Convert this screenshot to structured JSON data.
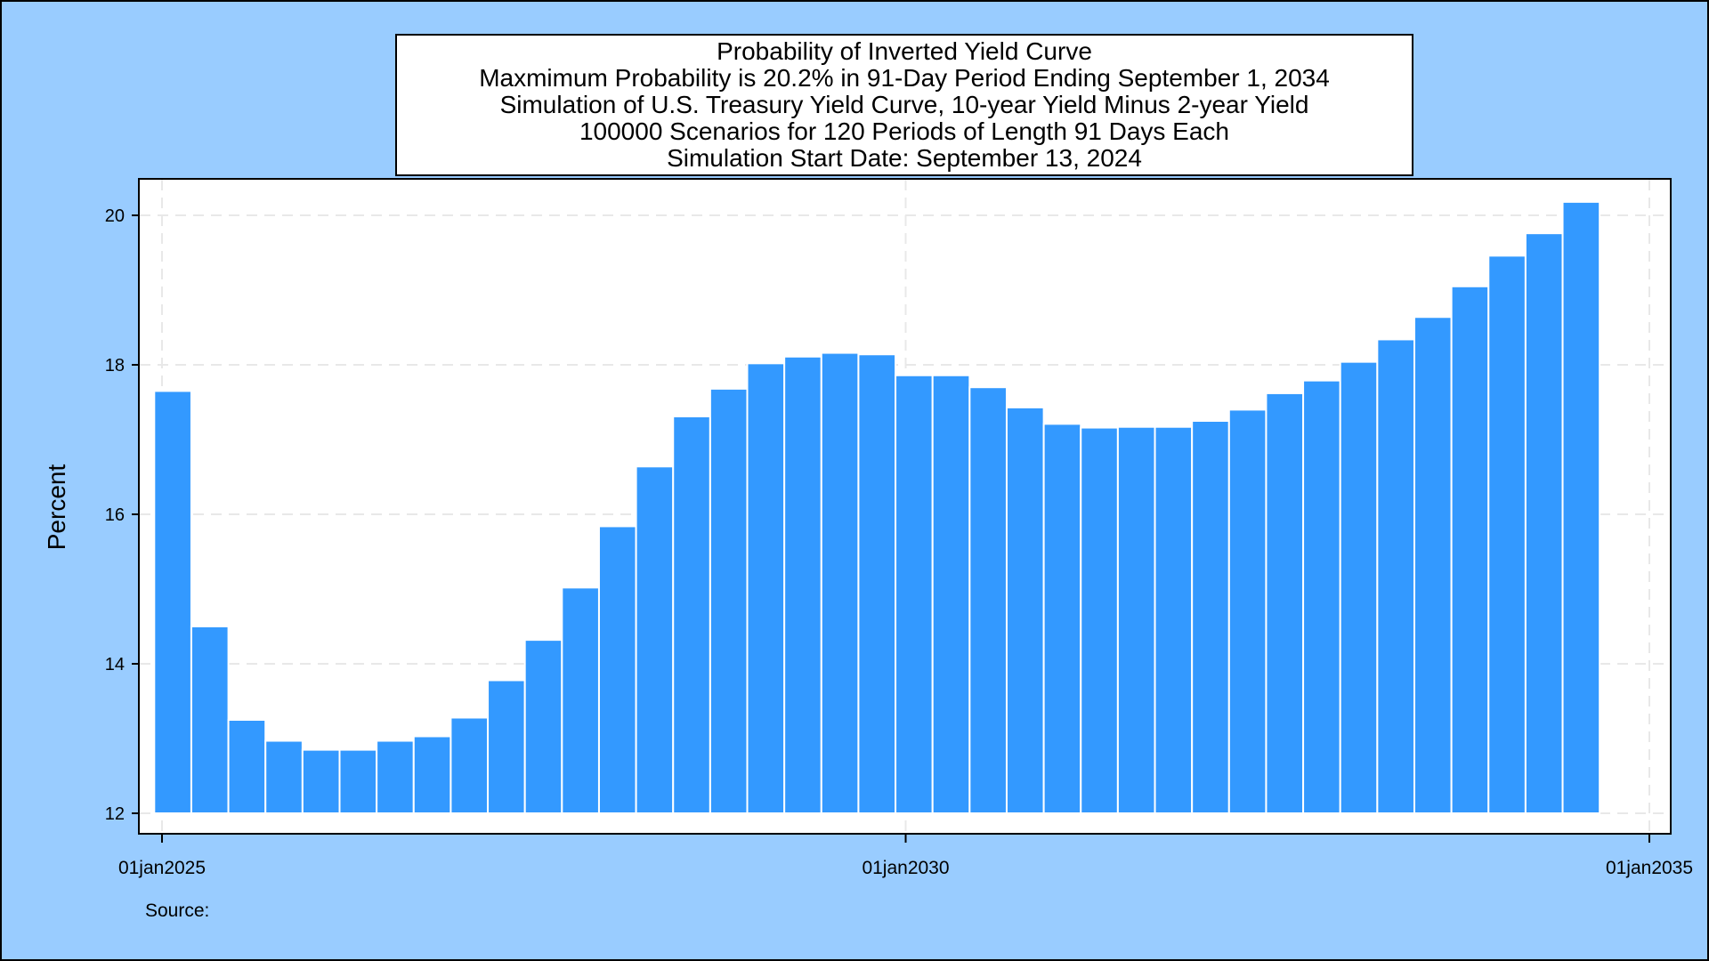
{
  "chart_data": {
    "type": "bar",
    "title": "Probability of Inverted Yield Curve",
    "subtitles": [
      "Maxmimum Probability is 20.2% in 91-Day Period Ending September 1, 2034",
      "Simulation of U.S. Treasury Yield Curve, 10-year Yield Minus 2-year Yield",
      "100000 Scenarios for 120 Periods of Length 91 Days Each",
      "Simulation Start Date: September 13, 2024"
    ],
    "ylabel": "Percent",
    "xlabel": "",
    "note": "Source:",
    "ylim": [
      12,
      20.7
    ],
    "yticks": [
      12,
      14,
      16,
      18,
      20
    ],
    "xrange": [
      "2024-12-01",
      "2035-03-01"
    ],
    "xticks": [
      {
        "date": "2025-01-01",
        "label": "01jan2025"
      },
      {
        "date": "2030-01-01",
        "label": "01jan2030"
      },
      {
        "date": "2035-01-01",
        "label": "01jan2035"
      }
    ],
    "grid": true,
    "colors": {
      "bar_fill": "#3399ff",
      "bar_edge": "#ffffff",
      "page_background": "#99ccff",
      "plot_background": "#ffffff",
      "grid": "#e8e8e8"
    },
    "period_end_dates": [
      "2025-03-14",
      "2025-06-13",
      "2025-09-12",
      "2025-12-12",
      "2026-03-13",
      "2026-06-12",
      "2026-09-11",
      "2026-12-11",
      "2027-03-12",
      "2027-06-11",
      "2027-09-10",
      "2027-12-10",
      "2028-03-10",
      "2028-06-09",
      "2028-09-08",
      "2028-12-08",
      "2029-03-09",
      "2029-06-08",
      "2029-09-07",
      "2029-12-07",
      "2030-03-08",
      "2030-06-07",
      "2030-09-06",
      "2030-12-06",
      "2031-03-07",
      "2031-06-06",
      "2031-09-05",
      "2031-12-05",
      "2032-03-05",
      "2032-06-04",
      "2032-09-03",
      "2032-12-03",
      "2033-03-04",
      "2033-06-03",
      "2033-09-02",
      "2033-12-02",
      "2034-03-03",
      "2034-06-02",
      "2034-09-01"
    ],
    "values": [
      17.65,
      14.5,
      13.25,
      12.97,
      12.85,
      12.85,
      12.97,
      13.03,
      13.28,
      13.78,
      14.32,
      15.02,
      15.84,
      16.64,
      17.31,
      17.68,
      18.02,
      18.11,
      18.16,
      18.14,
      17.86,
      17.86,
      17.7,
      17.43,
      17.21,
      17.16,
      17.17,
      17.17,
      17.25,
      17.4,
      17.62,
      17.79,
      18.04,
      18.34,
      18.64,
      19.05,
      19.46,
      19.76,
      20.18
    ]
  }
}
